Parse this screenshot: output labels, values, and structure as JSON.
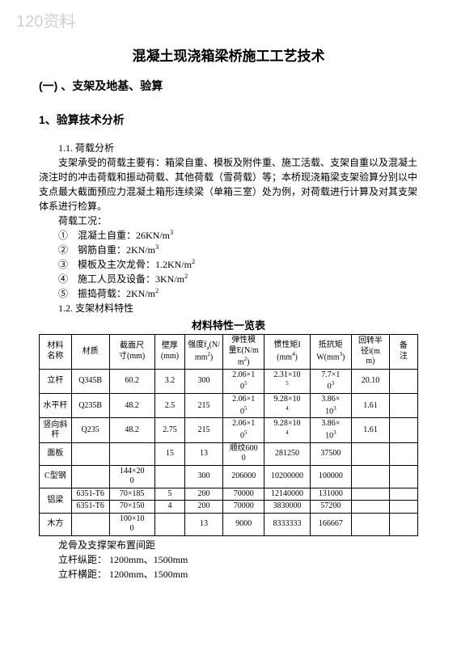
{
  "watermark": "120资料",
  "title": "混凝土现浇箱梁桥施工工艺技术",
  "section1": "(一) 、支架及地基、验算",
  "subsection1": "1、验算技术分析",
  "heading_1_1": "1.1. 荷载分析",
  "para1": "支架承受的荷载主要有：箱梁自重、模板及附件重、施工活载、支架自重以及混凝土浇注时的冲击荷载和振动荷载、其他荷载（雪荷载）等；本桥现浇箱梁支架验算分别以中支点最大截面预应力混凝土箱形连续梁（单箱三室）处为例，对荷载进行计算及对其支架体系进行检算。",
  "load_intro": "荷载工况：",
  "loads": [
    {
      "num": "①",
      "label": "混凝土自重：26KN/m",
      "sup": "3"
    },
    {
      "num": "②",
      "label": "钢筋自重：2KN/m",
      "sup": "3"
    },
    {
      "num": "③",
      "label": "模板及主次龙骨：1.2KN/m",
      "sup": "2"
    },
    {
      "num": "④",
      "label": "施工人员及设备：3KN/m",
      "sup": "2"
    },
    {
      "num": "⑤",
      "label": "振捣荷载：2KN/m",
      "sup": "2"
    }
  ],
  "heading_1_2": "1.2. 支架材料特性",
  "table_title": "材料特性一览表",
  "table": {
    "headers": [
      "材料名称",
      "材质",
      "截面尺寸(mm)",
      "壁厚(mm)",
      "强度f_a(N/mm²)",
      "弹性模量E(N/mm²)",
      "惯性矩I(mm⁴)",
      "抵抗矩W(mm³)",
      "回转半径i(mm)",
      "备注"
    ],
    "col_widths": [
      "8.5%",
      "10%",
      "12%",
      "8%",
      "10%",
      "11%",
      "12%",
      "11%",
      "10%",
      "7.5%"
    ],
    "rows": [
      {
        "cells": [
          "立杆",
          "Q345B",
          "60.2",
          "3.2",
          "300",
          "2.06×10⁵",
          "2.31×10⁵",
          "7.7×10³",
          "20.10",
          ""
        ]
      },
      {
        "cells": [
          "水平杆",
          "Q235B",
          "48.2",
          "2.5",
          "215",
          "2.06×10⁵",
          "9.28×10⁴",
          "3.86×10³",
          "1.61",
          ""
        ]
      },
      {
        "cells": [
          "竖向斜杆",
          "Q235",
          "48.2",
          "2.75",
          "215",
          "2.06×10⁵",
          "9.28×10⁴",
          "3.86×10³",
          "1.61",
          ""
        ]
      },
      {
        "cells": [
          "面板",
          "",
          "",
          "15",
          "13",
          "顺纹6000",
          "281250",
          "37500",
          "",
          ""
        ]
      },
      {
        "cells": [
          "C型钢",
          "",
          "144×200",
          "",
          "300",
          "206000",
          "10200000",
          "100000",
          "",
          ""
        ]
      },
      {
        "cells": [
          "铝梁",
          "6351-T6",
          "70×185",
          "5",
          "200",
          "70000",
          "12140000",
          "131000",
          "",
          ""
        ],
        "rowspan_first": 2
      },
      {
        "cells": [
          null,
          "6351-T6",
          "70×150",
          "4",
          "200",
          "70000",
          "3830000",
          "57200",
          "",
          ""
        ]
      },
      {
        "cells": [
          "木方",
          "",
          "100×100",
          "",
          "13",
          "9000",
          "8333333",
          "166667",
          "",
          ""
        ]
      }
    ]
  },
  "footer": {
    "line1": "龙骨及支撑架布置间距",
    "line2": "立杆纵距：  1200mm、1500mm",
    "line3": "立杆横距：  1200mm、1500mm"
  }
}
